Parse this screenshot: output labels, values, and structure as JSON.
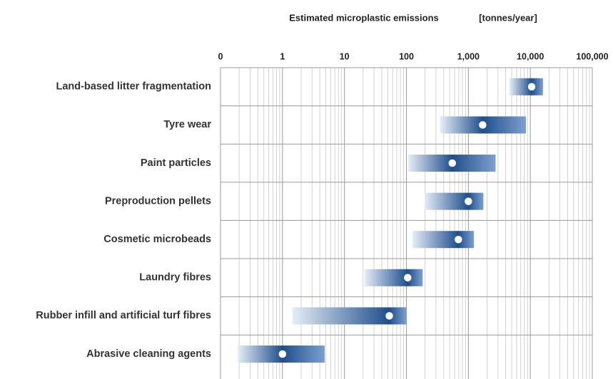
{
  "chart_data": {
    "type": "range",
    "title": "Estimated microplastic emissions",
    "unit": "[tonnes/year]",
    "categories": [
      "Land-based litter fragmentation",
      "Tyre wear",
      "Paint particles",
      "Preproduction pellets",
      "Cosmetic microbeads",
      "Laundry fibres",
      "Rubber infill and artificial turf fibres",
      "Abrasive cleaning agents"
    ],
    "low": [
      4600,
      350,
      107,
      195,
      125,
      21,
      1.45,
      0.19
    ],
    "high": [
      16000,
      8500,
      2750,
      1750,
      1230,
      183,
      100,
      4.8
    ],
    "estimate": [
      10500,
      1700,
      550,
      1000,
      690,
      105,
      53,
      1
    ],
    "color": "#1f4e8c",
    "xscale": "log",
    "xlim": [
      0.1,
      100000
    ],
    "xticks": [
      {
        "value": 0.1,
        "label": "0"
      },
      1,
      10,
      100,
      {
        "value": 1000,
        "label": "1,000"
      },
      {
        "value": 10000,
        "label": "10,000"
      },
      {
        "value": 100000,
        "label": "100,000"
      }
    ],
    "grid": true,
    "minor_grid": true
  }
}
